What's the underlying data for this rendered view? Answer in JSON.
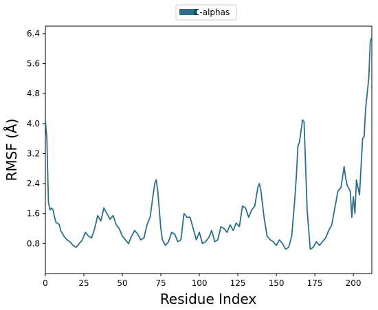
{
  "chart_data": {
    "type": "line",
    "title": "",
    "xlabel": "Residue Index",
    "ylabel": "RMSF (Å)",
    "xlim": [
      0,
      212
    ],
    "ylim": [
      0.0,
      6.6
    ],
    "xticks": [
      0,
      25,
      50,
      75,
      100,
      125,
      150,
      175,
      200
    ],
    "xtick_labels": [
      "0",
      "25",
      "50",
      "75",
      "100",
      "125",
      "150",
      "175",
      "200"
    ],
    "yticks": [
      0.8,
      1.6,
      2.4,
      3.2,
      4.0,
      4.8,
      5.6,
      6.4
    ],
    "ytick_labels": [
      "0.8",
      "1.6",
      "2.4",
      "3.2",
      "4.0",
      "4.8",
      "5.6",
      "6.4"
    ],
    "grid": false,
    "legend_position": "top-center",
    "series": [
      {
        "name": "C-alphas",
        "color": "#2b6f8a",
        "x": [
          0,
          1,
          2,
          3,
          4,
          5,
          6,
          7,
          8,
          9,
          10,
          12,
          14,
          16,
          18,
          20,
          22,
          24,
          26,
          28,
          30,
          32,
          34,
          36,
          38,
          40,
          42,
          44,
          46,
          48,
          50,
          52,
          54,
          56,
          58,
          60,
          62,
          64,
          66,
          68,
          70,
          71,
          72,
          73,
          74,
          75,
          76,
          78,
          80,
          82,
          84,
          86,
          88,
          90,
          92,
          94,
          96,
          98,
          100,
          102,
          104,
          106,
          108,
          110,
          112,
          114,
          116,
          118,
          120,
          122,
          124,
          126,
          128,
          130,
          132,
          134,
          136,
          138,
          139,
          140,
          142,
          144,
          146,
          148,
          150,
          152,
          154,
          156,
          158,
          160,
          162,
          163,
          164,
          165,
          166,
          167,
          168,
          170,
          172,
          174,
          176,
          178,
          180,
          182,
          184,
          186,
          188,
          190,
          192,
          194,
          195,
          196,
          198,
          199,
          200,
          201,
          202,
          204,
          206,
          207,
          208,
          210,
          211,
          212
        ],
        "y": [
          4.1,
          3.6,
          1.9,
          1.7,
          1.75,
          1.7,
          1.5,
          1.35,
          1.35,
          1.3,
          1.15,
          1.0,
          0.9,
          0.85,
          0.75,
          0.7,
          0.8,
          0.9,
          1.1,
          1.0,
          0.95,
          1.2,
          1.55,
          1.4,
          1.75,
          1.6,
          1.45,
          1.55,
          1.3,
          1.2,
          1.0,
          0.9,
          0.8,
          1.0,
          1.15,
          1.05,
          0.9,
          0.95,
          1.3,
          1.5,
          2.1,
          2.4,
          2.5,
          2.2,
          1.7,
          1.2,
          0.9,
          0.75,
          0.85,
          1.1,
          1.05,
          0.85,
          0.9,
          1.6,
          1.5,
          1.5,
          1.2,
          0.9,
          1.1,
          0.8,
          0.85,
          0.95,
          1.15,
          0.85,
          0.9,
          1.25,
          1.2,
          1.1,
          1.3,
          1.15,
          1.35,
          1.25,
          1.8,
          1.75,
          1.5,
          1.7,
          1.8,
          2.3,
          2.4,
          2.2,
          1.5,
          1.0,
          0.9,
          0.85,
          0.75,
          0.9,
          0.8,
          0.65,
          0.7,
          1.0,
          2.0,
          2.6,
          3.4,
          3.5,
          3.8,
          4.1,
          4.05,
          1.7,
          0.65,
          0.7,
          0.85,
          0.75,
          0.85,
          0.95,
          1.15,
          1.3,
          1.75,
          2.2,
          2.3,
          2.85,
          2.55,
          2.35,
          2.2,
          1.5,
          2.05,
          1.6,
          2.5,
          2.1,
          3.6,
          3.65,
          4.4,
          5.2,
          6.2,
          6.3
        ]
      }
    ]
  }
}
